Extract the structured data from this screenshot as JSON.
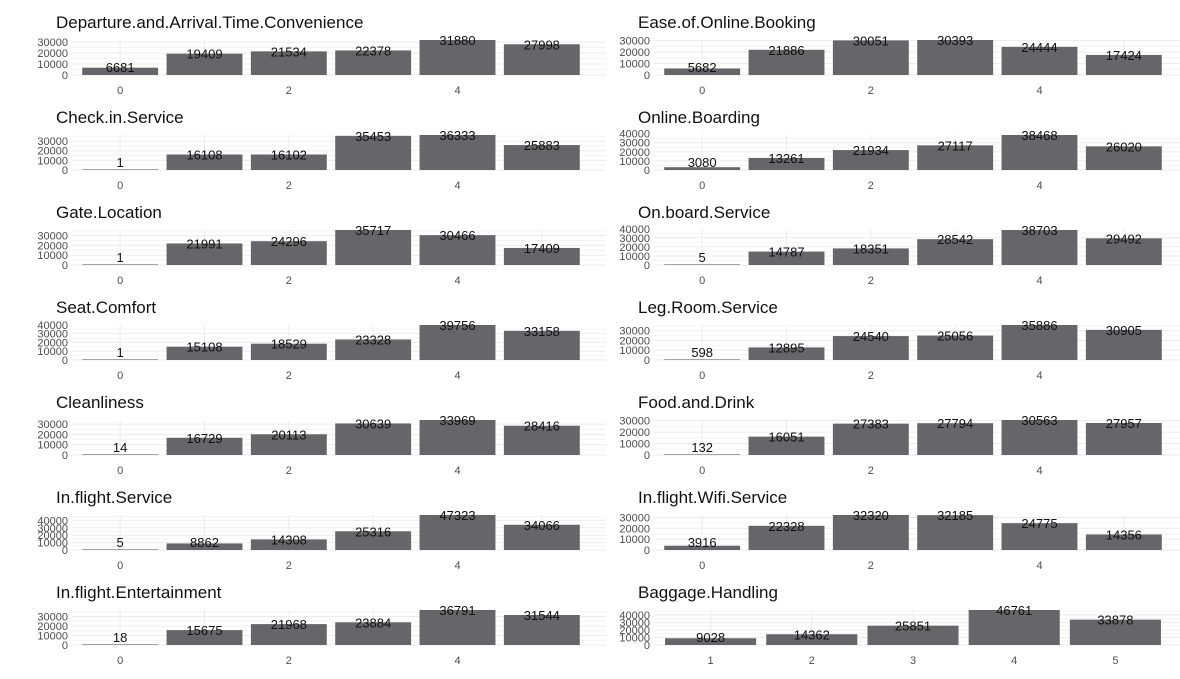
{
  "colors": {
    "bar": "#666569",
    "grid_major": "#ebebeb",
    "grid_minor": "#f4f4f4",
    "text": "#111111",
    "tick_text": "#4d4d4d",
    "background": "#ffffff"
  },
  "chart_data": [
    {
      "type": "bar",
      "title": "Departure.and.Arrival.Time.Convenience",
      "categories": [
        0,
        1,
        2,
        3,
        4,
        5
      ],
      "values": [
        6681,
        19409,
        21534,
        22378,
        31880,
        27998
      ],
      "data_labels": [
        "6681",
        "19409",
        "21534",
        "22378",
        "31880",
        "27998"
      ],
      "x_tick_labels": [
        {
          "x": 0,
          "label": "0"
        },
        {
          "x": 2,
          "label": "2"
        },
        {
          "x": 4,
          "label": "4"
        }
      ],
      "y_ticks": [
        0,
        10000,
        20000,
        30000
      ],
      "y_tick_labels": [
        "0",
        "10000",
        "20000",
        "30000"
      ],
      "ylim": [
        0,
        31880
      ],
      "xlabel": "",
      "ylabel": "",
      "grid": true
    },
    {
      "type": "bar",
      "title": "Ease.of.Online.Booking",
      "categories": [
        0,
        1,
        2,
        3,
        4,
        5
      ],
      "values": [
        5682,
        21886,
        30051,
        30393,
        24444,
        17424
      ],
      "data_labels": [
        "5682",
        "21886",
        "30051",
        "30393",
        "24444",
        "17424"
      ],
      "x_tick_labels": [
        {
          "x": 0,
          "label": "0"
        },
        {
          "x": 2,
          "label": "2"
        },
        {
          "x": 4,
          "label": "4"
        }
      ],
      "y_ticks": [
        0,
        10000,
        20000,
        30000
      ],
      "y_tick_labels": [
        "0",
        "10000",
        "20000",
        "30000"
      ],
      "ylim": [
        0,
        30393
      ],
      "xlabel": "",
      "ylabel": "",
      "grid": true
    },
    {
      "type": "bar",
      "title": "Check.in.Service",
      "categories": [
        0,
        1,
        2,
        3,
        4,
        5
      ],
      "values": [
        1,
        16108,
        16102,
        35453,
        36333,
        25883
      ],
      "data_labels": [
        "1",
        "16108",
        "16102",
        "35453",
        "36333",
        "25883"
      ],
      "x_tick_labels": [
        {
          "x": 0,
          "label": "0"
        },
        {
          "x": 2,
          "label": "2"
        },
        {
          "x": 4,
          "label": "4"
        }
      ],
      "y_ticks": [
        0,
        10000,
        20000,
        30000
      ],
      "y_tick_labels": [
        "0",
        "10000",
        "20000",
        "30000"
      ],
      "ylim": [
        0,
        36333
      ],
      "xlabel": "",
      "ylabel": "",
      "grid": true
    },
    {
      "type": "bar",
      "title": "Online.Boarding",
      "categories": [
        0,
        1,
        2,
        3,
        4,
        5
      ],
      "values": [
        3080,
        13261,
        21934,
        27117,
        38468,
        26020
      ],
      "data_labels": [
        "3080",
        "13261",
        "21934",
        "27117",
        "38468",
        "26020"
      ],
      "x_tick_labels": [
        {
          "x": 0,
          "label": "0"
        },
        {
          "x": 2,
          "label": "2"
        },
        {
          "x": 4,
          "label": "4"
        }
      ],
      "y_ticks": [
        0,
        10000,
        20000,
        30000,
        40000
      ],
      "y_tick_labels": [
        "0",
        "10000",
        "20000",
        "30000",
        "40000"
      ],
      "ylim": [
        0,
        38468
      ],
      "xlabel": "",
      "ylabel": "",
      "grid": true
    },
    {
      "type": "bar",
      "title": "Gate.Location",
      "categories": [
        0,
        1,
        2,
        3,
        4,
        5
      ],
      "values": [
        1,
        21991,
        24296,
        35717,
        30466,
        17409
      ],
      "data_labels": [
        "1",
        "21991",
        "24296",
        "35717",
        "30466",
        "17409"
      ],
      "x_tick_labels": [
        {
          "x": 0,
          "label": "0"
        },
        {
          "x": 2,
          "label": "2"
        },
        {
          "x": 4,
          "label": "4"
        }
      ],
      "y_ticks": [
        0,
        10000,
        20000,
        30000
      ],
      "y_tick_labels": [
        "0",
        "10000",
        "20000",
        "30000"
      ],
      "ylim": [
        0,
        35717
      ],
      "xlabel": "",
      "ylabel": "",
      "grid": true
    },
    {
      "type": "bar",
      "title": "On.board.Service",
      "categories": [
        0,
        1,
        2,
        3,
        4,
        5
      ],
      "values": [
        5,
        14787,
        18351,
        28542,
        38703,
        29492
      ],
      "data_labels": [
        "5",
        "14787",
        "18351",
        "28542",
        "38703",
        "29492"
      ],
      "x_tick_labels": [
        {
          "x": 0,
          "label": "0"
        },
        {
          "x": 2,
          "label": "2"
        },
        {
          "x": 4,
          "label": "4"
        }
      ],
      "y_ticks": [
        0,
        10000,
        20000,
        30000,
        40000
      ],
      "y_tick_labels": [
        "0",
        "10000",
        "20000",
        "30000",
        "40000"
      ],
      "ylim": [
        0,
        38703
      ],
      "xlabel": "",
      "ylabel": "",
      "grid": true
    },
    {
      "type": "bar",
      "title": "Seat.Comfort",
      "categories": [
        0,
        1,
        2,
        3,
        4,
        5
      ],
      "values": [
        1,
        15108,
        18529,
        23328,
        39756,
        33158
      ],
      "data_labels": [
        "1",
        "15108",
        "18529",
        "23328",
        "39756",
        "33158"
      ],
      "x_tick_labels": [
        {
          "x": 0,
          "label": "0"
        },
        {
          "x": 2,
          "label": "2"
        },
        {
          "x": 4,
          "label": "4"
        }
      ],
      "y_ticks": [
        0,
        10000,
        20000,
        30000,
        40000
      ],
      "y_tick_labels": [
        "0",
        "10000",
        "20000",
        "30000",
        "40000"
      ],
      "ylim": [
        0,
        39756
      ],
      "xlabel": "",
      "ylabel": "",
      "grid": true
    },
    {
      "type": "bar",
      "title": "Leg.Room.Service",
      "categories": [
        0,
        1,
        2,
        3,
        4,
        5
      ],
      "values": [
        598,
        12895,
        24540,
        25056,
        35886,
        30905
      ],
      "data_labels": [
        "598",
        "12895",
        "24540",
        "25056",
        "35886",
        "30905"
      ],
      "x_tick_labels": [
        {
          "x": 0,
          "label": "0"
        },
        {
          "x": 2,
          "label": "2"
        },
        {
          "x": 4,
          "label": "4"
        }
      ],
      "y_ticks": [
        0,
        10000,
        20000,
        30000
      ],
      "y_tick_labels": [
        "0",
        "10000",
        "20000",
        "30000"
      ],
      "ylim": [
        0,
        35886
      ],
      "xlabel": "",
      "ylabel": "",
      "grid": true
    },
    {
      "type": "bar",
      "title": "Cleanliness",
      "categories": [
        0,
        1,
        2,
        3,
        4,
        5
      ],
      "values": [
        14,
        16729,
        20113,
        30639,
        33969,
        28416
      ],
      "data_labels": [
        "14",
        "16729",
        "20113",
        "30639",
        "33969",
        "28416"
      ],
      "x_tick_labels": [
        {
          "x": 0,
          "label": "0"
        },
        {
          "x": 2,
          "label": "2"
        },
        {
          "x": 4,
          "label": "4"
        }
      ],
      "y_ticks": [
        0,
        10000,
        20000,
        30000
      ],
      "y_tick_labels": [
        "0",
        "10000",
        "20000",
        "30000"
      ],
      "ylim": [
        0,
        33969
      ],
      "xlabel": "",
      "ylabel": "",
      "grid": true
    },
    {
      "type": "bar",
      "title": "Food.and.Drink",
      "categories": [
        0,
        1,
        2,
        3,
        4,
        5
      ],
      "values": [
        132,
        16051,
        27383,
        27794,
        30563,
        27957
      ],
      "data_labels": [
        "132",
        "16051",
        "27383",
        "27794",
        "30563",
        "27957"
      ],
      "x_tick_labels": [
        {
          "x": 0,
          "label": "0"
        },
        {
          "x": 2,
          "label": "2"
        },
        {
          "x": 4,
          "label": "4"
        }
      ],
      "y_ticks": [
        0,
        10000,
        20000,
        30000
      ],
      "y_tick_labels": [
        "0",
        "10000",
        "20000",
        "30000"
      ],
      "ylim": [
        0,
        30563
      ],
      "xlabel": "",
      "ylabel": "",
      "grid": true
    },
    {
      "type": "bar",
      "title": "In.flight.Service",
      "categories": [
        0,
        1,
        2,
        3,
        4,
        5
      ],
      "values": [
        5,
        8862,
        14308,
        25316,
        47323,
        34066
      ],
      "data_labels": [
        "5",
        "8862",
        "14308",
        "25316",
        "47323",
        "34066"
      ],
      "x_tick_labels": [
        {
          "x": 0,
          "label": "0"
        },
        {
          "x": 2,
          "label": "2"
        },
        {
          "x": 4,
          "label": "4"
        }
      ],
      "y_ticks": [
        0,
        10000,
        20000,
        30000,
        40000
      ],
      "y_tick_labels": [
        "0",
        "10000",
        "20000",
        "30000",
        "40000"
      ],
      "ylim": [
        0,
        47323
      ],
      "xlabel": "",
      "ylabel": "",
      "grid": true
    },
    {
      "type": "bar",
      "title": "In.flight.Wifi.Service",
      "categories": [
        0,
        1,
        2,
        3,
        4,
        5
      ],
      "values": [
        3916,
        22328,
        32320,
        32185,
        24775,
        14356
      ],
      "data_labels": [
        "3916",
        "22328",
        "32320",
        "32185",
        "24775",
        "14356"
      ],
      "x_tick_labels": [
        {
          "x": 0,
          "label": "0"
        },
        {
          "x": 2,
          "label": "2"
        },
        {
          "x": 4,
          "label": "4"
        }
      ],
      "y_ticks": [
        0,
        10000,
        20000,
        30000
      ],
      "y_tick_labels": [
        "0",
        "10000",
        "20000",
        "30000"
      ],
      "ylim": [
        0,
        32320
      ],
      "xlabel": "",
      "ylabel": "",
      "grid": true
    },
    {
      "type": "bar",
      "title": "In.flight.Entertainment",
      "categories": [
        0,
        1,
        2,
        3,
        4,
        5
      ],
      "values": [
        18,
        15675,
        21968,
        23884,
        36791,
        31544
      ],
      "data_labels": [
        "18",
        "15675",
        "21968",
        "23884",
        "36791",
        "31544"
      ],
      "x_tick_labels": [
        {
          "x": 0,
          "label": "0"
        },
        {
          "x": 2,
          "label": "2"
        },
        {
          "x": 4,
          "label": "4"
        }
      ],
      "y_ticks": [
        0,
        10000,
        20000,
        30000
      ],
      "y_tick_labels": [
        "0",
        "10000",
        "20000",
        "30000"
      ],
      "ylim": [
        0,
        36791
      ],
      "xlabel": "",
      "ylabel": "",
      "grid": true
    },
    {
      "type": "bar",
      "title": "Baggage.Handling",
      "categories": [
        1,
        2,
        3,
        4,
        5
      ],
      "values": [
        9028,
        14362,
        25851,
        46761,
        33878
      ],
      "data_labels": [
        "9028",
        "14362",
        "25851",
        "46761",
        "33878"
      ],
      "x_tick_labels": [
        {
          "x": 1,
          "label": "1"
        },
        {
          "x": 2,
          "label": "2"
        },
        {
          "x": 3,
          "label": "3"
        },
        {
          "x": 4,
          "label": "4"
        },
        {
          "x": 5,
          "label": "5"
        }
      ],
      "y_ticks": [
        0,
        10000,
        20000,
        30000,
        40000
      ],
      "y_tick_labels": [
        "0",
        "10000",
        "20000",
        "30000",
        "40000"
      ],
      "ylim": [
        0,
        46761
      ],
      "xlabel": "",
      "ylabel": "",
      "grid": true
    }
  ]
}
